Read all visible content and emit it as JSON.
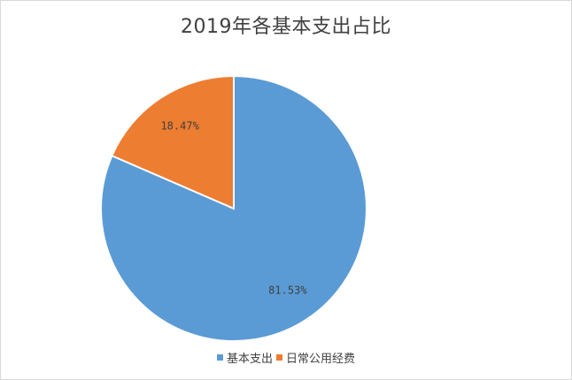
{
  "chart_data": {
    "type": "pie",
    "title": "2019年各基本支出占比",
    "categories": [
      "基本支出",
      "日常公用经费"
    ],
    "values": [
      81.53,
      18.47
    ],
    "data_labels": [
      "81.53%",
      "18.47%"
    ],
    "colors": [
      "#5B9BD5",
      "#ED7D31"
    ],
    "legend": "bottom"
  }
}
